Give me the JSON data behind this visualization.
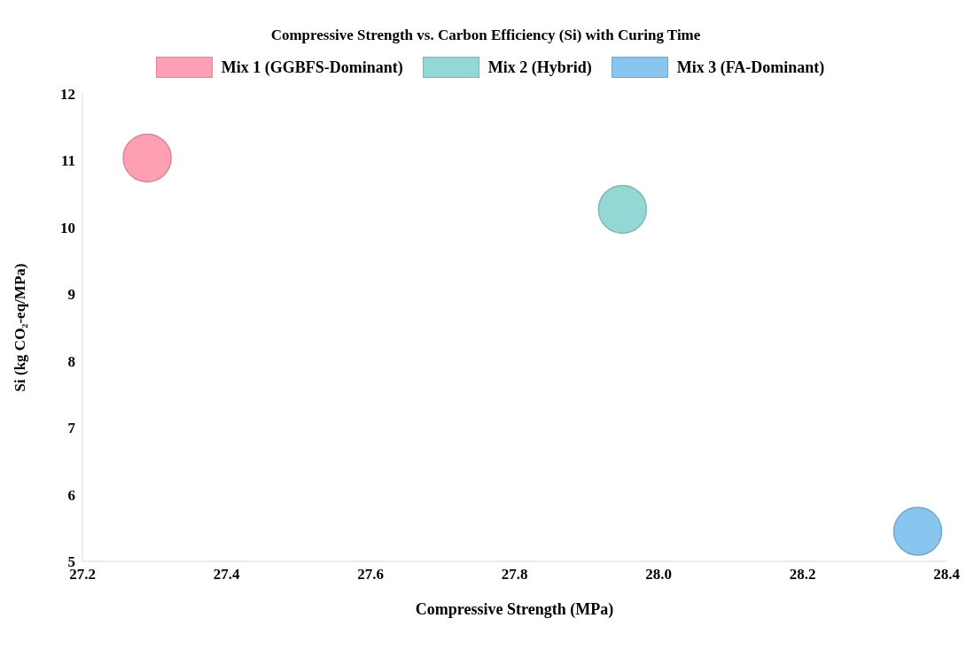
{
  "chart_data": {
    "type": "bubble",
    "title": "Compressive Strength vs. Carbon Efficiency (Si) with Curing Time",
    "xlabel": "Compressive Strength (MPa)",
    "ylabel": "Si (kg CO₂-eq/MPa)",
    "xlim": [
      27.2,
      28.4
    ],
    "xticks": [
      {
        "value": 27.2,
        "label": "27.2"
      },
      {
        "value": 27.4,
        "label": "27.4"
      },
      {
        "value": 27.6,
        "label": "27.6"
      },
      {
        "value": 27.8,
        "label": "27.8"
      },
      {
        "value": 28.0,
        "label": "28.0"
      },
      {
        "value": 28.2,
        "label": "28.2"
      },
      {
        "value": 28.4,
        "label": "28.4"
      }
    ],
    "ylim": [
      5,
      12
    ],
    "yticks": [
      5,
      6,
      7,
      8,
      9,
      10,
      11,
      12
    ],
    "legend": "top",
    "series": [
      {
        "name": "Mix 1 (GGBFS-Dominant)",
        "color": "#ff9fb3",
        "x": [
          27.29
        ],
        "values": [
          11.04
        ],
        "sizes": [
          1
        ]
      },
      {
        "name": "Mix 2 (Hybrid)",
        "color": "#94d8d6",
        "x": [
          27.95
        ],
        "values": [
          10.27
        ],
        "sizes": [
          1
        ]
      },
      {
        "name": "Mix 3 (FA-Dominant)",
        "color": "#88c5ef",
        "x": [
          28.36
        ],
        "values": [
          5.45
        ],
        "sizes": [
          1
        ]
      }
    ]
  }
}
